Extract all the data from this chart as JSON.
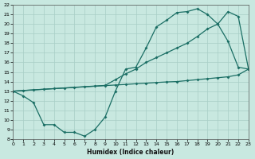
{
  "xlabel": "Humidex (Indice chaleur)",
  "bg_color": "#c8e8e0",
  "line_color": "#1a6e64",
  "grid_color": "#a8cec6",
  "xlim": [
    0,
    23
  ],
  "ylim": [
    8,
    22
  ],
  "xticks": [
    0,
    1,
    2,
    3,
    4,
    5,
    6,
    7,
    8,
    9,
    10,
    11,
    12,
    13,
    14,
    15,
    16,
    17,
    18,
    19,
    20,
    21,
    22,
    23
  ],
  "yticks": [
    8,
    9,
    10,
    11,
    12,
    13,
    14,
    15,
    16,
    17,
    18,
    19,
    20,
    21,
    22
  ],
  "line_jagged_x": [
    0,
    1,
    2,
    3,
    4,
    5,
    6,
    7,
    8,
    9,
    10,
    11,
    12,
    13,
    14,
    15,
    16,
    17,
    18,
    19,
    20,
    21,
    22,
    23
  ],
  "line_jagged_y": [
    13,
    12.5,
    11.8,
    9.5,
    9.5,
    8.7,
    8.7,
    8.3,
    9.0,
    10.3,
    13.0,
    15.3,
    15.5,
    17.5,
    19.7,
    20.4,
    21.2,
    21.3,
    21.6,
    21.0,
    20.0,
    18.2,
    15.5,
    15.3
  ],
  "line_lo_diag_x": [
    0,
    1,
    2,
    3,
    4,
    5,
    6,
    7,
    8,
    9,
    10,
    11,
    12,
    13,
    14,
    15,
    16,
    17,
    18,
    19,
    20,
    21,
    22,
    23
  ],
  "line_lo_diag_y": [
    13.0,
    13.06,
    13.13,
    13.19,
    13.26,
    13.32,
    13.38,
    13.45,
    13.51,
    13.58,
    13.64,
    13.7,
    13.77,
    13.83,
    13.9,
    13.96,
    14.0,
    14.1,
    14.2,
    14.3,
    14.4,
    14.5,
    14.7,
    15.3
  ],
  "line_hi_x": [
    0,
    9,
    10,
    11,
    12,
    13,
    14,
    15,
    16,
    17,
    18,
    19,
    20,
    21,
    22,
    23
  ],
  "line_hi_y": [
    13.0,
    13.6,
    14.2,
    14.8,
    15.3,
    16.0,
    16.5,
    17.0,
    17.5,
    18.0,
    18.7,
    19.5,
    20.0,
    21.3,
    20.8,
    15.3
  ],
  "marker": "D",
  "markersize": 2.0,
  "linewidth": 0.9
}
